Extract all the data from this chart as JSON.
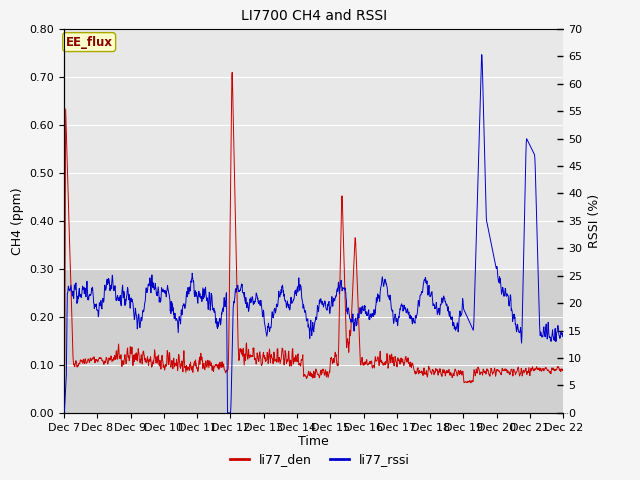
{
  "title": "LI7700 CH4 and RSSI",
  "xlabel": "Time",
  "ylabel_left": "CH4 (ppm)",
  "ylabel_right": "RSSI (%)",
  "ylim_left": [
    0.0,
    0.8
  ],
  "ylim_right": [
    0,
    70
  ],
  "yticks_left": [
    0.0,
    0.1,
    0.2,
    0.3,
    0.4,
    0.5,
    0.6,
    0.7,
    0.8
  ],
  "yticks_right": [
    0,
    5,
    10,
    15,
    20,
    25,
    30,
    35,
    40,
    45,
    50,
    55,
    60,
    65,
    70
  ],
  "color_ch4": "#cc0000",
  "color_rssi": "#0000cc",
  "label_ch4": "li77_den",
  "label_rssi": "li77_rssi",
  "annotation_text": "EE_flux",
  "annotation_bg": "#ffffcc",
  "annotation_border": "#aaa800",
  "bg_light": "#e8e8e8",
  "bg_dark": "#d0d0d0",
  "grid_color": "#ffffff",
  "fig_bg": "#f5f5f5",
  "title_fontsize": 10,
  "axis_fontsize": 9,
  "tick_fontsize": 8,
  "legend_fontsize": 9,
  "num_points": 1500,
  "x_tick_days": [
    7,
    8,
    9,
    10,
    11,
    12,
    13,
    14,
    15,
    16,
    17,
    18,
    19,
    20,
    21,
    22
  ]
}
